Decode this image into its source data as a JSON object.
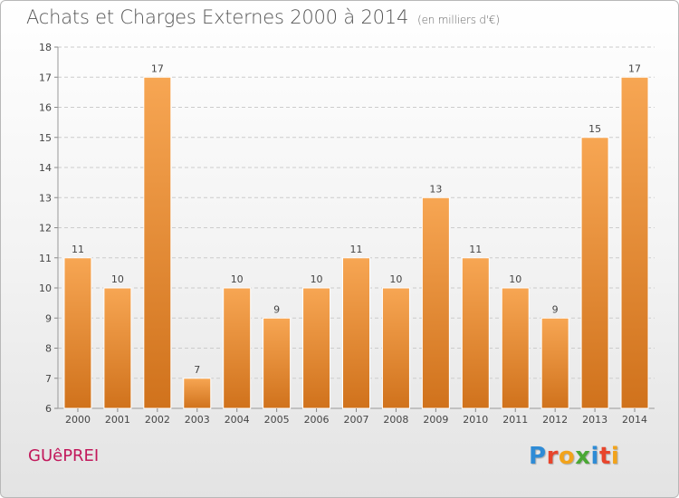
{
  "header": {
    "title": "Achats et Charges Externes 2000 à 2014",
    "subtitle": "(en milliers d'€)"
  },
  "footer": {
    "commune": "GUêPREI",
    "logo_text": "Proxiti",
    "logo_colors": [
      "#2e8bd6",
      "#e8452c",
      "#f2a31b",
      "#4aa834",
      "#2e8bd6",
      "#e8452c",
      "#f2a31b"
    ]
  },
  "colors": {
    "bar_light": "#f7a653",
    "bar_dark": "#d0721c",
    "bar_stroke": "#ffffff",
    "grid": "#cccccc",
    "axis_text": "#444444"
  },
  "chart_data": {
    "type": "bar",
    "categories": [
      "2000",
      "2001",
      "2002",
      "2003",
      "2004",
      "2005",
      "2006",
      "2007",
      "2008",
      "2009",
      "2010",
      "2011",
      "2012",
      "2013",
      "2014"
    ],
    "values": [
      11,
      10,
      17,
      7,
      10,
      9,
      10,
      11,
      10,
      13,
      11,
      10,
      9,
      15,
      17
    ],
    "data_labels": [
      "11",
      "10",
      "17",
      "7",
      "10",
      "9",
      "10",
      "11",
      "10",
      "13",
      "11",
      "10",
      "9",
      "15",
      "17"
    ],
    "title": "Achats et Charges Externes 2000 à 2014",
    "subtitle": "(en milliers d'€)",
    "xlabel": "",
    "ylabel": "",
    "ylim": [
      6,
      18
    ],
    "yticks": [
      6,
      7,
      8,
      9,
      10,
      11,
      12,
      13,
      14,
      15,
      16,
      17,
      18
    ],
    "grid": true,
    "legend": "none"
  }
}
